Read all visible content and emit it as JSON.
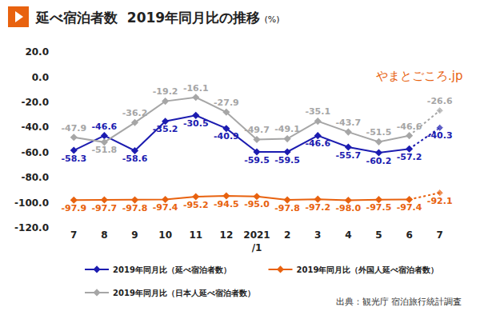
{
  "chart_data": {
    "type": "line",
    "title": "延べ宿泊者数  2019年同月比の推移",
    "subtitle": "(%)",
    "logo": "やまとごころ.jp",
    "source": "出典：観光庁 宿泊旅行統計調査",
    "categories": [
      "7",
      "8",
      "9",
      "10",
      "11",
      "12",
      "2021\n/1",
      "2",
      "3",
      "4",
      "5",
      "6",
      "7"
    ],
    "series": [
      {
        "name": "2019年同月比（延べ宿泊者数）",
        "color": "#1c1cb0",
        "values": [
          -58.3,
          -46.6,
          -58.6,
          -35.2,
          -30.5,
          -40.9,
          -59.5,
          -59.5,
          -46.6,
          -55.7,
          -60.2,
          -57.2,
          -40.3
        ],
        "value_labels": [
          "-58.3",
          "-46.6",
          "-58.6",
          "-35.2",
          "-30.5",
          "-40.9",
          "-59.5",
          "-59.5",
          "-46.6",
          "-55.7",
          "-60.2",
          "-57.2",
          "-40.3"
        ]
      },
      {
        "name": "2019年同月比（外国人延べ宿泊者数）",
        "color": "#e8620f",
        "values": [
          -97.9,
          -97.7,
          -97.8,
          -97.4,
          -95.2,
          -94.5,
          -95.0,
          -97.8,
          -97.2,
          -98.0,
          -97.5,
          -97.4,
          -92.1
        ],
        "value_labels": [
          "-97.9",
          "-97.7",
          "-97.8",
          "-97.4",
          "-95.2",
          "-94.5",
          "-95.0",
          "-97.8",
          "-97.2",
          "-98.0",
          "-97.5",
          "-97.4",
          "-92.1"
        ]
      },
      {
        "name": "2019年同月比（日本人延べ宿泊者数）",
        "color": "#a6a6a6",
        "values": [
          -47.9,
          -51.8,
          -36.2,
          -19.2,
          -16.1,
          -27.9,
          -49.7,
          -49.1,
          -35.1,
          -43.7,
          -51.5,
          -46.6,
          -26.6
        ],
        "value_labels": [
          "-47.9",
          "-51.8",
          "-36.2",
          "-19.2",
          "-16.1",
          "-27.9",
          "-49.7",
          "-49.1",
          "-35.1",
          "-43.7",
          "-51.5",
          "-46.6",
          "-26.6"
        ]
      }
    ],
    "ylim": [
      -120,
      20
    ],
    "yticks": [
      {
        "value": 20,
        "label": "20.0"
      },
      {
        "value": 0,
        "label": "0.0"
      },
      {
        "value": -20,
        "label": "-20.0"
      },
      {
        "value": -40,
        "label": "-40.0"
      },
      {
        "value": -60,
        "label": "-60.0"
      },
      {
        "value": -80,
        "label": "-80.0"
      },
      {
        "value": -100,
        "label": "-100.0"
      },
      {
        "value": -120,
        "label": "-120.0"
      }
    ],
    "grid": false,
    "legend": "bottom",
    "data_labels": true,
    "marker": "diamond"
  }
}
